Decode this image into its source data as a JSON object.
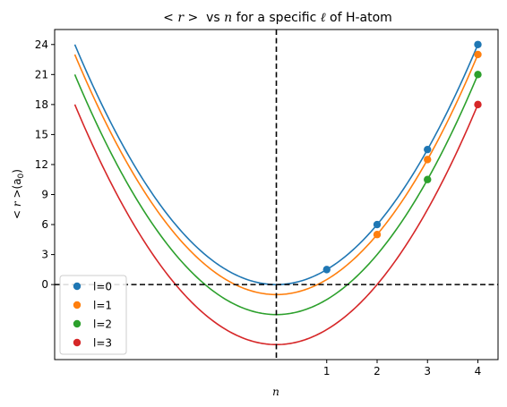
{
  "chart_data": {
    "type": "line",
    "title": {
      "lt": "< ",
      "r": "r",
      "gt": " >",
      "vs": "  vs ",
      "n": "n",
      "mid": " for a specific ",
      "ell": "ℓ",
      "end": " of H-atom"
    },
    "xlabel": "n",
    "ylabel": {
      "lt": "< ",
      "r": "r",
      "gt": " >",
      "unit_open": "(a",
      "unit_sub": "0",
      "unit_close": ")"
    },
    "xlim": [
      -4.4,
      4.4
    ],
    "ylim": [
      -7.5,
      25.5
    ],
    "xticks": [
      {
        "value": 1,
        "label": "1"
      },
      {
        "value": 2,
        "label": "2"
      },
      {
        "value": 3,
        "label": "3"
      },
      {
        "value": 4,
        "label": "4"
      }
    ],
    "yticks": [
      {
        "value": 0,
        "label": "0"
      },
      {
        "value": 3,
        "label": "3"
      },
      {
        "value": 6,
        "label": "6"
      },
      {
        "value": 9,
        "label": "9"
      },
      {
        "value": 12,
        "label": "12"
      },
      {
        "value": 15,
        "label": "15"
      },
      {
        "value": 18,
        "label": "18"
      },
      {
        "value": 21,
        "label": "21"
      },
      {
        "value": 24,
        "label": "24"
      }
    ],
    "reference_lines": {
      "x": 0,
      "y": 0,
      "style": "dashed",
      "color": "#000000"
    },
    "curves": [
      {
        "series": "l=0",
        "color": "#1f77b4",
        "formula": "1.5*n^2 - 0",
        "x_range": [
          -4,
          4
        ]
      },
      {
        "series": "l=1",
        "color": "#ff7f0e",
        "formula": "1.5*n^2 - 1",
        "x_range": [
          -4,
          4
        ]
      },
      {
        "series": "l=2",
        "color": "#2ca02c",
        "formula": "1.5*n^2 - 3",
        "x_range": [
          -4,
          4
        ]
      },
      {
        "series": "l=3",
        "color": "#d62728",
        "formula": "1.5*n^2 - 6",
        "x_range": [
          -4,
          4
        ]
      }
    ],
    "series": [
      {
        "name": "l=0",
        "color": "#1f77b4",
        "x": [
          1,
          2,
          3,
          4
        ],
        "y": [
          1.5,
          6,
          13.5,
          24
        ]
      },
      {
        "name": "l=1",
        "color": "#ff7f0e",
        "x": [
          2,
          3,
          4
        ],
        "y": [
          5,
          12.5,
          23
        ]
      },
      {
        "name": "l=2",
        "color": "#2ca02c",
        "x": [
          3,
          4
        ],
        "y": [
          10.5,
          21
        ]
      },
      {
        "name": "l=3",
        "color": "#d62728",
        "x": [
          4
        ],
        "y": [
          18
        ]
      }
    ],
    "legend": {
      "placement": "lower-left"
    },
    "grid": false
  }
}
